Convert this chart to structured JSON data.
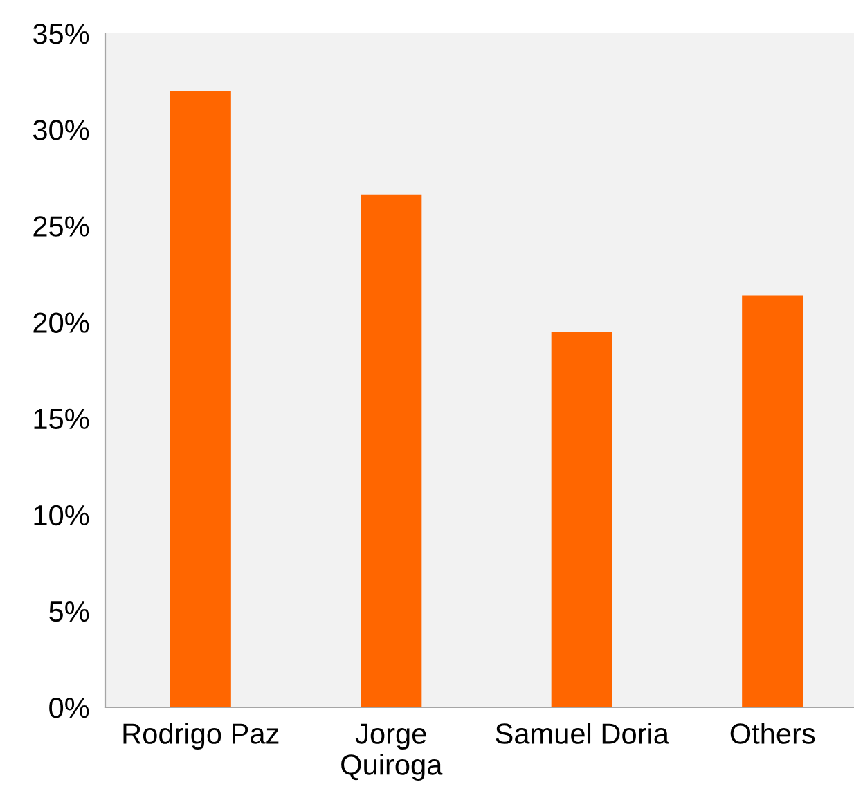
{
  "chart_data": {
    "type": "bar",
    "categories": [
      "Rodrigo Paz",
      "Jorge\nQuiroga",
      "Samuel Doria",
      "Others"
    ],
    "values": [
      32.0,
      26.6,
      19.5,
      21.4
    ],
    "color": "#ff6600",
    "ylim": [
      0,
      35
    ],
    "yticks": [
      {
        "value": 0,
        "label": "0%"
      },
      {
        "value": 5,
        "label": "5%"
      },
      {
        "value": 10,
        "label": "10%"
      },
      {
        "value": 15,
        "label": "15%"
      },
      {
        "value": 20,
        "label": "20%"
      },
      {
        "value": 25,
        "label": "25%"
      },
      {
        "value": 30,
        "label": "30%"
      },
      {
        "value": 35,
        "label": "35%"
      }
    ],
    "grid": false,
    "legend": false
  }
}
